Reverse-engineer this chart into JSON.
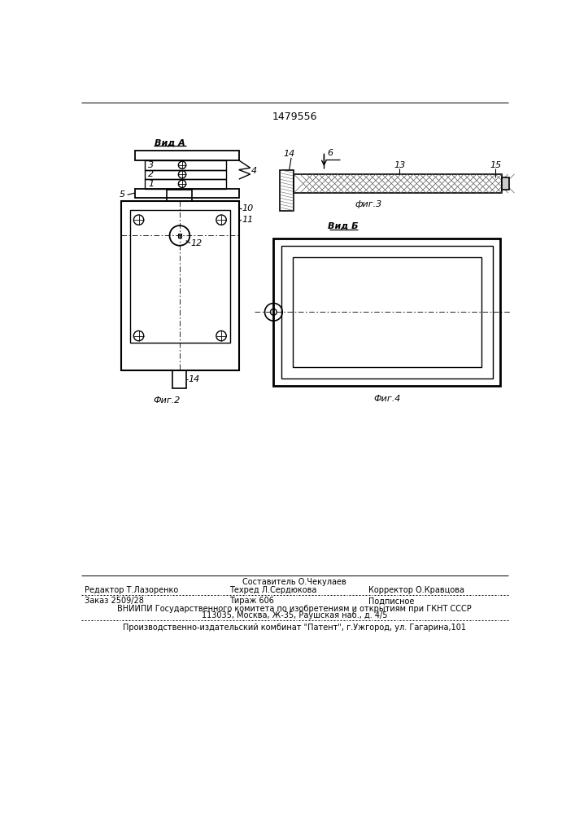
{
  "patent_number": "1479556",
  "bg_color": "#ffffff",
  "line_color": "#000000",
  "fig_width": 7.07,
  "fig_height": 10.0,
  "footer_line0": "Составитель О.Чекулаев",
  "footer_line1_col1": "Редактор Т.Лазоренко",
  "footer_line1_col2": "Техред Л.Сердюкова",
  "footer_line1_col3": "Корректор О.Кравцова",
  "footer_line2_col1": "Заказ 2509/28",
  "footer_line2_col2": "Тираж 606",
  "footer_line2_col3": "Подписное",
  "footer_line3": "ВНИИПИ Государственного комитета по изобретениям и открытиям при ГКНТ СССР",
  "footer_line4": "113035, Москва, Ж-35, Раушская наб., д. 4/5",
  "footer_line5": "Производственно-издательский комбинат \"Патент\", г.Ужгород, ул. Гагарина,101"
}
